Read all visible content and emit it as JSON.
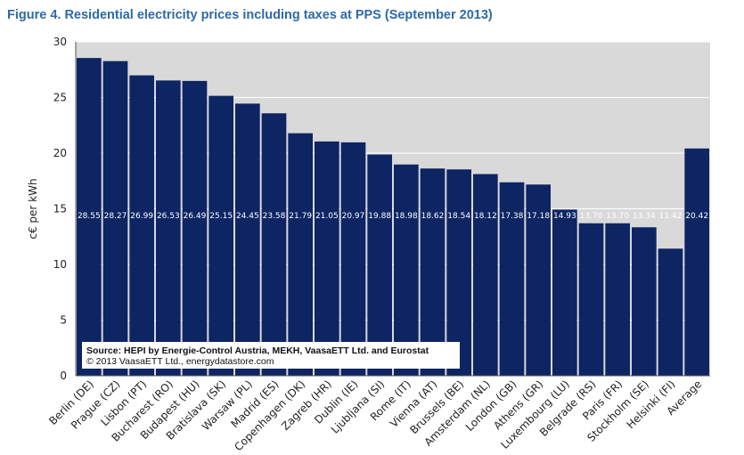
{
  "figure_title": "Figure 4. Residential electricity prices including taxes at PPS (September 2013)",
  "chart_data": {
    "type": "bar",
    "title": "Figure 4. Residential electricity prices including taxes at PPS (September 2013)",
    "xlabel": "",
    "ylabel": "c€ per kWh",
    "ylim": [
      0,
      30
    ],
    "yticks": [
      0,
      5,
      10,
      15,
      20,
      25,
      30
    ],
    "grid": true,
    "categories": [
      "Berlin (DE)",
      "Prague (CZ)",
      "Lisbon (PT)",
      "Bucharest (RO)",
      "Budapest (HU)",
      "Bratislava (SK)",
      "Warsaw (PL)",
      "Madrid (ES)",
      "Copenhagen (DK)",
      "Zagreb (HR)",
      "Dublin (IE)",
      "Ljubljana (SI)",
      "Rome (IT)",
      "Vienna (AT)",
      "Brussels (BE)",
      "Amsterdam (NL)",
      "London (GB)",
      "Athens (GR)",
      "Luxembourg (LU)",
      "Belgrade (RS)",
      "Paris (FR)",
      "Stockholm (SE)",
      "Helsinki (FI)",
      "Average"
    ],
    "values": [
      28.55,
      28.27,
      26.99,
      26.53,
      26.49,
      25.15,
      24.45,
      23.58,
      21.79,
      21.05,
      20.97,
      19.88,
      18.98,
      18.62,
      18.54,
      18.12,
      17.38,
      17.18,
      14.93,
      13.7,
      13.7,
      13.34,
      11.42,
      20.42
    ],
    "value_labels": [
      "28.55",
      "28.27",
      "26.99",
      "26.53",
      "26.49",
      "25.15",
      "24.45",
      "23.58",
      "21.79",
      "21.05",
      "20.97",
      "19.88",
      "18.98",
      "18.62",
      "18.54",
      "18.12",
      "17.38",
      "17.18",
      "14.93",
      "13.70",
      "13.70",
      "13.34",
      "11.42",
      "20.42"
    ],
    "bar_color": "#0d2563",
    "plot_background": "#d9d9d9",
    "source_lines": [
      "Source: HEPI by Energie-Control Austria, MEKH, VaasaETT Ltd. and Eurostat",
      "© 2013 VaasaETT Ltd., energydatastore.com"
    ]
  }
}
